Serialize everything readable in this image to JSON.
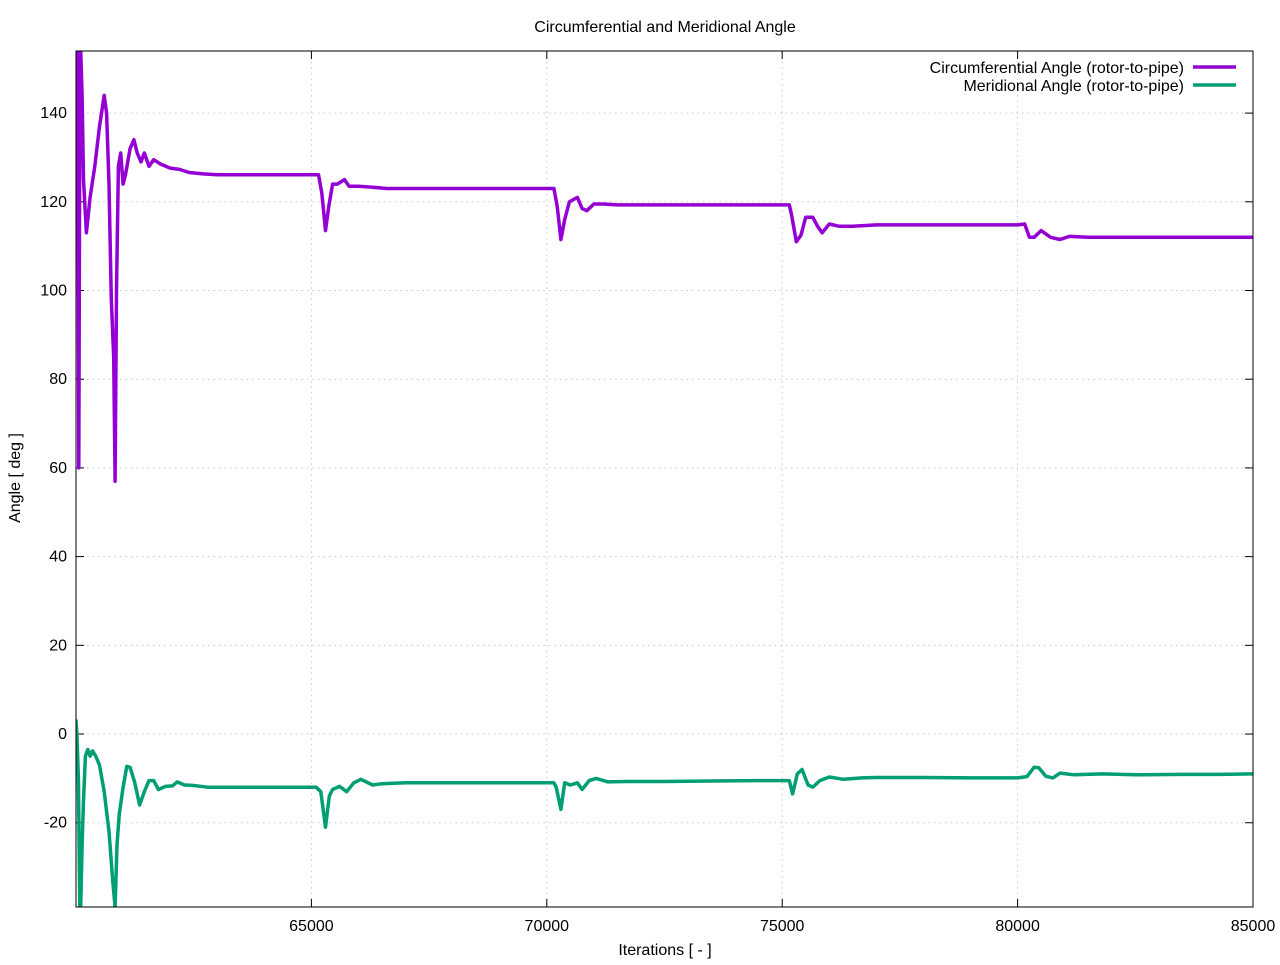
{
  "chart_data": {
    "type": "line",
    "title": "Circumferential and Meridional Angle",
    "xlabel": "Iterations [ - ]",
    "ylabel": "Angle [ deg ]",
    "xlim": [
      60000,
      85000
    ],
    "ylim": [
      -39,
      154
    ],
    "xticks": [
      65000,
      70000,
      75000,
      80000,
      85000
    ],
    "yticks": [
      -20,
      0,
      20,
      40,
      60,
      80,
      100,
      120,
      140
    ],
    "grid": true,
    "legend_position": "top-right",
    "series": [
      {
        "name": "Circumferential Angle (rotor-to-pipe)",
        "color": "#9400d3",
        "points": [
          [
            60000,
            124
          ],
          [
            60040,
            154
          ],
          [
            60060,
            60
          ],
          [
            60080,
            140
          ],
          [
            60100,
            154
          ],
          [
            60130,
            144
          ],
          [
            60160,
            125
          ],
          [
            60220,
            113
          ],
          [
            60300,
            121
          ],
          [
            60400,
            128
          ],
          [
            60500,
            137
          ],
          [
            60600,
            144
          ],
          [
            60650,
            140
          ],
          [
            60700,
            124
          ],
          [
            60750,
            98
          ],
          [
            60800,
            85
          ],
          [
            60830,
            57
          ],
          [
            60860,
            100
          ],
          [
            60900,
            128
          ],
          [
            60950,
            131
          ],
          [
            61000,
            124
          ],
          [
            61050,
            126
          ],
          [
            61150,
            132
          ],
          [
            61230,
            134
          ],
          [
            61300,
            131
          ],
          [
            61380,
            129
          ],
          [
            61450,
            131
          ],
          [
            61550,
            128
          ],
          [
            61650,
            129.5
          ],
          [
            61800,
            128.5
          ],
          [
            62000,
            127.6
          ],
          [
            62200,
            127.3
          ],
          [
            62400,
            126.6
          ],
          [
            62700,
            126.3
          ],
          [
            63000,
            126.1
          ],
          [
            63500,
            126.1
          ],
          [
            64500,
            126.1
          ],
          [
            65150,
            126.1
          ],
          [
            65220,
            122
          ],
          [
            65300,
            113.5
          ],
          [
            65370,
            119
          ],
          [
            65450,
            124
          ],
          [
            65550,
            124
          ],
          [
            65700,
            125
          ],
          [
            65800,
            123.5
          ],
          [
            66000,
            123.5
          ],
          [
            66300,
            123.3
          ],
          [
            66600,
            123
          ],
          [
            67000,
            123
          ],
          [
            68000,
            123
          ],
          [
            69000,
            123
          ],
          [
            70150,
            123
          ],
          [
            70220,
            119
          ],
          [
            70300,
            111.5
          ],
          [
            70380,
            116
          ],
          [
            70480,
            120
          ],
          [
            70650,
            121
          ],
          [
            70750,
            118.5
          ],
          [
            70850,
            118
          ],
          [
            71000,
            119.5
          ],
          [
            71200,
            119.5
          ],
          [
            71500,
            119.3
          ],
          [
            72000,
            119.3
          ],
          [
            73000,
            119.3
          ],
          [
            74000,
            119.3
          ],
          [
            75150,
            119.3
          ],
          [
            75200,
            117
          ],
          [
            75300,
            111
          ],
          [
            75400,
            112.5
          ],
          [
            75500,
            116.5
          ],
          [
            75650,
            116.5
          ],
          [
            75750,
            114.5
          ],
          [
            75850,
            113
          ],
          [
            76000,
            115
          ],
          [
            76200,
            114.5
          ],
          [
            76500,
            114.5
          ],
          [
            77000,
            114.8
          ],
          [
            78000,
            114.8
          ],
          [
            79000,
            114.8
          ],
          [
            80000,
            114.8
          ],
          [
            80150,
            115
          ],
          [
            80250,
            112
          ],
          [
            80350,
            112
          ],
          [
            80500,
            113.5
          ],
          [
            80700,
            112
          ],
          [
            80900,
            111.5
          ],
          [
            81100,
            112.2
          ],
          [
            81500,
            112
          ],
          [
            82000,
            112
          ],
          [
            83000,
            112
          ],
          [
            84000,
            112
          ],
          [
            85000,
            112
          ]
        ]
      },
      {
        "name": "Meridional Angle (rotor-to-pipe)",
        "color": "#009e73",
        "points": [
          [
            60000,
            3
          ],
          [
            60020,
            0
          ],
          [
            60050,
            -10
          ],
          [
            60080,
            -39
          ],
          [
            60100,
            -39
          ],
          [
            60130,
            -25
          ],
          [
            60160,
            -15
          ],
          [
            60200,
            -5
          ],
          [
            60250,
            -3.5
          ],
          [
            60300,
            -5
          ],
          [
            60350,
            -3.8
          ],
          [
            60420,
            -5
          ],
          [
            60500,
            -7
          ],
          [
            60600,
            -13
          ],
          [
            60700,
            -22
          ],
          [
            60780,
            -33
          ],
          [
            60830,
            -39
          ],
          [
            60870,
            -25
          ],
          [
            60920,
            -18
          ],
          [
            61000,
            -12
          ],
          [
            61080,
            -7.3
          ],
          [
            61150,
            -7.5
          ],
          [
            61250,
            -11
          ],
          [
            61350,
            -16
          ],
          [
            61450,
            -13
          ],
          [
            61550,
            -10.5
          ],
          [
            61650,
            -10.5
          ],
          [
            61750,
            -12.5
          ],
          [
            61900,
            -11.8
          ],
          [
            62050,
            -11.7
          ],
          [
            62150,
            -10.8
          ],
          [
            62300,
            -11.5
          ],
          [
            62500,
            -11.6
          ],
          [
            62800,
            -12
          ],
          [
            63500,
            -12
          ],
          [
            64500,
            -12
          ],
          [
            65100,
            -12
          ],
          [
            65200,
            -13
          ],
          [
            65300,
            -21
          ],
          [
            65380,
            -14
          ],
          [
            65450,
            -12.5
          ],
          [
            65600,
            -11.8
          ],
          [
            65750,
            -13
          ],
          [
            65900,
            -11
          ],
          [
            66050,
            -10.2
          ],
          [
            66300,
            -11.5
          ],
          [
            66500,
            -11.2
          ],
          [
            67000,
            -11
          ],
          [
            68000,
            -11
          ],
          [
            69000,
            -11
          ],
          [
            70150,
            -11
          ],
          [
            70200,
            -12
          ],
          [
            70300,
            -17
          ],
          [
            70380,
            -11
          ],
          [
            70500,
            -11.5
          ],
          [
            70650,
            -11
          ],
          [
            70750,
            -12.5
          ],
          [
            70900,
            -10.5
          ],
          [
            71050,
            -10
          ],
          [
            71300,
            -10.8
          ],
          [
            71700,
            -10.7
          ],
          [
            72500,
            -10.7
          ],
          [
            73500,
            -10.6
          ],
          [
            74500,
            -10.5
          ],
          [
            75150,
            -10.5
          ],
          [
            75220,
            -13.5
          ],
          [
            75320,
            -9
          ],
          [
            75420,
            -8
          ],
          [
            75550,
            -11.5
          ],
          [
            75650,
            -12
          ],
          [
            75800,
            -10.5
          ],
          [
            76000,
            -9.7
          ],
          [
            76300,
            -10.2
          ],
          [
            76700,
            -9.9
          ],
          [
            77000,
            -9.8
          ],
          [
            78000,
            -9.8
          ],
          [
            79000,
            -9.9
          ],
          [
            80000,
            -9.9
          ],
          [
            80200,
            -9.6
          ],
          [
            80350,
            -7.5
          ],
          [
            80450,
            -7.6
          ],
          [
            80600,
            -9.5
          ],
          [
            80750,
            -9.9
          ],
          [
            80900,
            -8.8
          ],
          [
            81200,
            -9.2
          ],
          [
            81800,
            -9
          ],
          [
            82500,
            -9.2
          ],
          [
            83500,
            -9.1
          ],
          [
            84300,
            -9.1
          ],
          [
            85000,
            -9
          ]
        ]
      }
    ]
  }
}
